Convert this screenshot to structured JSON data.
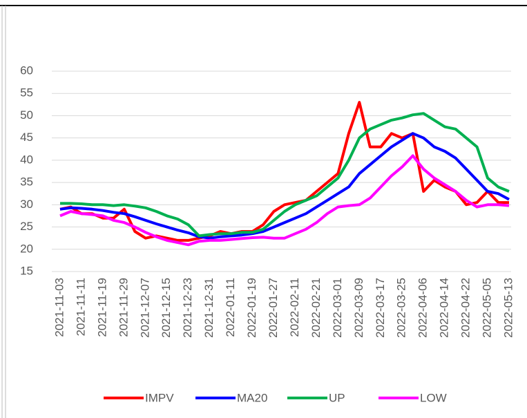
{
  "chart_data": {
    "type": "line",
    "categories": [
      "2021-11-03",
      null,
      "2021-11-11",
      null,
      "2021-11-19",
      null,
      "2021-11-29",
      null,
      "2021-12-07",
      null,
      "2021-12-15",
      null,
      "2021-12-23",
      null,
      "2021-12-31",
      null,
      "2022-01-11",
      null,
      "2022-01-19",
      null,
      "2022-01-27",
      null,
      "2022-02-11",
      null,
      "2022-02-21",
      null,
      "2022-03-01",
      null,
      "2022-03-09",
      null,
      "2022-03-17",
      null,
      "2022-03-25",
      null,
      "2022-04-06",
      null,
      "2022-04-14",
      null,
      "2022-04-22",
      null,
      "2022-05-05",
      null,
      "2022-05-13"
    ],
    "series": [
      {
        "name": "IMPV",
        "color": "#ff0000",
        "values": [
          29,
          29.5,
          28,
          28,
          27,
          27,
          29,
          24,
          22.5,
          23,
          22.5,
          22,
          22,
          22.5,
          23,
          24,
          23.5,
          24,
          24,
          25.5,
          28.5,
          30,
          30.5,
          31,
          33,
          35,
          37,
          46,
          53,
          43,
          43,
          46,
          45,
          46,
          33,
          35.5,
          34,
          33,
          30,
          30.5,
          33,
          30.5,
          30.5
        ]
      },
      {
        "name": "MA20",
        "color": "#0000ff",
        "values": [
          29,
          29.3,
          29.2,
          29,
          28.7,
          28.3,
          28,
          27.3,
          26.5,
          25.7,
          25,
          24.3,
          23.7,
          22.8,
          22.5,
          22.8,
          23,
          23.2,
          23.5,
          24,
          25,
          26,
          27,
          28,
          29.5,
          31,
          32.5,
          34,
          37,
          39,
          41,
          43,
          44.5,
          46,
          45,
          43,
          42,
          40.5,
          38,
          35.5,
          33,
          32.5,
          31.2
        ]
      },
      {
        "name": "UP",
        "color": "#00b050",
        "values": [
          30.3,
          30.3,
          30.2,
          30,
          30,
          29.8,
          30,
          29.7,
          29.3,
          28.5,
          27.5,
          26.8,
          25.5,
          23,
          23.3,
          23.5,
          23.5,
          23.8,
          23.8,
          24.5,
          26.5,
          28.5,
          30,
          31,
          32,
          34,
          36,
          40,
          45,
          47,
          48,
          49,
          49.5,
          50.2,
          50.5,
          49,
          47.5,
          47,
          45,
          43,
          36,
          34,
          33
        ]
      },
      {
        "name": "LOW",
        "color": "#ff00ff",
        "values": [
          27.5,
          28.5,
          28,
          27.8,
          27.5,
          26.5,
          26,
          25,
          23.8,
          22.8,
          22,
          21.5,
          21,
          21.8,
          22,
          22,
          22.2,
          22.4,
          22.6,
          22.7,
          22.5,
          22.5,
          23.5,
          24.5,
          26,
          28,
          29.5,
          29.8,
          30,
          31.5,
          34,
          36.5,
          38.5,
          41,
          38,
          36,
          34.5,
          33,
          31,
          29.5,
          30,
          30,
          29.8
        ]
      }
    ],
    "ylim": [
      15,
      60
    ],
    "yticks": [
      15,
      20,
      25,
      30,
      35,
      40,
      45,
      50,
      55,
      60
    ],
    "grid": true
  }
}
